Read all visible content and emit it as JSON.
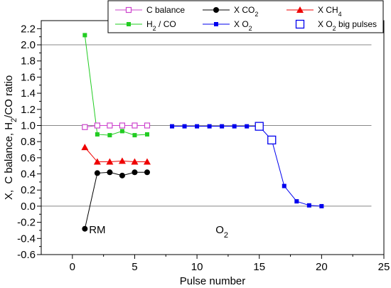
{
  "chart_data": {
    "type": "scatter",
    "xlabel": "Pulse number",
    "ylabel": "X,  C balance, H2/CO ratio",
    "xlim": [
      -2.5,
      25
    ],
    "ylim": [
      -0.6,
      2.3
    ],
    "x_ticks": [
      "0",
      "5",
      "10",
      "15",
      "20",
      "25"
    ],
    "y_ticks": [
      "-0.6",
      "-0.4",
      "-0.2",
      "0.0",
      "0.2",
      "0.4",
      "0.6",
      "0.8",
      "1.0",
      "1.2",
      "1.4",
      "1.6",
      "1.8",
      "2.0",
      "2.2"
    ],
    "reference_lines": [
      0.0,
      1.0,
      2.0
    ],
    "legend_position": "top",
    "annotations": [
      {
        "text": "RM",
        "x": 2.0,
        "y": -0.29
      },
      {
        "text": "O2",
        "x": 12.0,
        "y": -0.29
      }
    ],
    "series": [
      {
        "name": "C balance",
        "color": "#cc44cc",
        "marker": "square-open",
        "x": [
          1,
          2,
          3,
          4,
          5,
          6
        ],
        "y": [
          0.98,
          1.0,
          1.0,
          1.0,
          1.0,
          1.0
        ]
      },
      {
        "name": "H2 / CO",
        "color": "#22cc22",
        "marker": "square",
        "x": [
          1,
          2,
          3,
          4,
          5,
          6
        ],
        "y": [
          2.12,
          0.89,
          0.88,
          0.93,
          0.88,
          0.89
        ]
      },
      {
        "name": "X CO2",
        "color": "#000000",
        "marker": "circle",
        "x": [
          1,
          2,
          3,
          4,
          5,
          6
        ],
        "y": [
          -0.28,
          0.41,
          0.42,
          0.38,
          0.42,
          0.42
        ]
      },
      {
        "name": "X CH4",
        "color": "#ee0000",
        "marker": "triangle",
        "x": [
          1,
          2,
          3,
          4,
          5,
          6
        ],
        "y": [
          0.73,
          0.55,
          0.55,
          0.56,
          0.55,
          0.55
        ]
      },
      {
        "name": "X O2",
        "color": "#0000ee",
        "marker": "square",
        "x": [
          8,
          9,
          10,
          11,
          12,
          13,
          14,
          15,
          16,
          17,
          18,
          19,
          20
        ],
        "y": [
          0.99,
          0.99,
          0.99,
          0.99,
          0.99,
          0.99,
          0.99,
          0.99,
          0.82,
          0.25,
          0.06,
          0.01,
          0.0
        ]
      },
      {
        "name": "X O2 big pulses",
        "color": "#0000ee",
        "marker": "square-open-big",
        "x": [
          15,
          16
        ],
        "y": [
          0.99,
          0.82
        ]
      }
    ]
  }
}
